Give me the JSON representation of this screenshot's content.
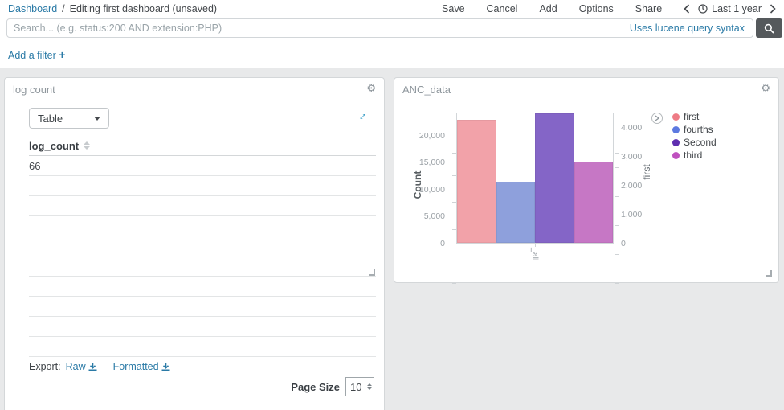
{
  "topnav": {
    "breadcrumb_root": "Dashboard",
    "breadcrumb_sep": "/",
    "breadcrumb_current": "Editing first dashboard (unsaved)",
    "menu_items": [
      "Save",
      "Cancel",
      "Add",
      "Options",
      "Share"
    ],
    "time_label": "Last 1 year"
  },
  "search": {
    "placeholder": "Search... (e.g. status:200 AND extension:PHP)",
    "value": "",
    "syntax_hint": "Uses lucene query syntax"
  },
  "filter_bar": {
    "add_filter": "Add a filter",
    "plus": "+"
  },
  "log_count_panel": {
    "title": "log count",
    "view_mode": "Table",
    "column_header": "log_count",
    "rows": [
      "66"
    ],
    "empty_rows": 9,
    "export_label": "Export:",
    "export_raw": "Raw",
    "export_formatted": "Formatted",
    "page_size_label": "Page Size",
    "page_size_value": "10"
  },
  "anc_panel": {
    "title": "ANC_data"
  },
  "chart_data": {
    "type": "bar",
    "title": "ANC_data",
    "categories": [
      "_all"
    ],
    "series": [
      {
        "name": "first",
        "values": [
          4250
        ],
        "axis": "right",
        "bar_color": "#f2a2a9",
        "legend_color": "#ee7b85"
      },
      {
        "name": "fourths",
        "values": [
          11400
        ],
        "axis": "left",
        "bar_color": "#8ea0dc",
        "legend_color": "#5c79e0"
      },
      {
        "name": "Second",
        "values": [
          24000
        ],
        "axis": "left",
        "bar_color": "#8465c7",
        "legend_color": "#5f2eb0"
      },
      {
        "name": "third",
        "values": [
          15100
        ],
        "axis": "left",
        "bar_color": "#c677c5",
        "legend_color": "#bf51bf"
      }
    ],
    "left_axis": {
      "title": "Count",
      "ticks": [
        0,
        5000,
        10000,
        15000,
        20000
      ],
      "tick_labels": [
        "0",
        "5,000",
        "10,000",
        "15,000",
        "20,000"
      ],
      "max": 24167
    },
    "right_axis": {
      "title": "first",
      "ticks": [
        0,
        1000,
        2000,
        3000,
        4000
      ],
      "tick_labels": [
        "0",
        "1,000",
        "2,000",
        "3,000",
        "4,000"
      ],
      "max": 4500
    },
    "legend_position": "right",
    "grid": false
  },
  "colors": {
    "link": "#2a7aa6",
    "accent_teal": "#2393c1",
    "button_dark": "#55595c",
    "panel_title": "#8e969c",
    "dashboard_bg": "#e8e9ea"
  }
}
